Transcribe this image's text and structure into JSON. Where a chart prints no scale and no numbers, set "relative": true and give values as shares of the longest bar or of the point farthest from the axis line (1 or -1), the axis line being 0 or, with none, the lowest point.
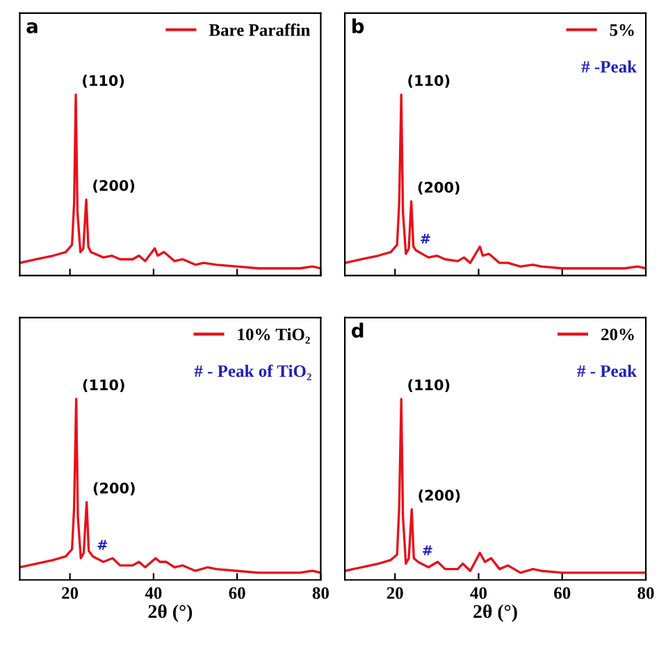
{
  "chart_data": [
    {
      "type": "line",
      "title": "a",
      "relative": true,
      "xlim": [
        8,
        80
      ],
      "xticks": [
        20,
        40,
        60,
        80
      ],
      "tick_labels": false,
      "legend": "top right",
      "marker": "none",
      "line_style": "solid",
      "grid": false,
      "series": [
        {
          "name": "Bare Paraffin",
          "color": "#e8101a",
          "x": [
            8,
            12,
            16,
            19,
            20.5,
            21.0,
            21.4,
            21.8,
            22.5,
            23.2,
            23.9,
            24.4,
            25,
            28,
            30,
            32,
            35,
            36.5,
            38,
            40.3,
            41,
            42.5,
            45,
            47,
            50,
            52,
            55,
            60,
            65,
            70,
            75,
            78,
            80
          ],
          "values": [
            0.07,
            0.09,
            0.11,
            0.13,
            0.17,
            0.4,
            1.0,
            0.35,
            0.13,
            0.15,
            0.42,
            0.16,
            0.13,
            0.1,
            0.11,
            0.09,
            0.09,
            0.11,
            0.08,
            0.15,
            0.11,
            0.13,
            0.08,
            0.09,
            0.06,
            0.07,
            0.06,
            0.05,
            0.04,
            0.04,
            0.04,
            0.05,
            0.04
          ]
        }
      ],
      "annotations": [
        {
          "text": "(110)",
          "x": 21.4,
          "y": 1.0
        },
        {
          "text": "(200)",
          "x": 23.9,
          "y": 0.42
        }
      ]
    },
    {
      "type": "line",
      "title": "b",
      "relative": true,
      "xlim": [
        8,
        80
      ],
      "xticks": [
        20,
        40,
        60,
        80
      ],
      "tick_labels": false,
      "legend": "top right",
      "marker": "none",
      "line_style": "solid",
      "grid": false,
      "series": [
        {
          "name": "5%",
          "color": "#e8101a",
          "x": [
            8,
            12,
            16,
            19,
            20.5,
            21.0,
            21.5,
            21.9,
            22.6,
            23.3,
            23.9,
            24.4,
            25,
            28,
            30,
            32,
            35,
            36.5,
            38,
            40.3,
            41,
            42.5,
            45,
            47,
            50,
            53,
            55,
            60,
            65,
            70,
            75,
            78,
            80
          ],
          "values": [
            0.07,
            0.09,
            0.11,
            0.13,
            0.17,
            0.4,
            1.0,
            0.35,
            0.12,
            0.15,
            0.41,
            0.16,
            0.14,
            0.1,
            0.11,
            0.09,
            0.08,
            0.1,
            0.07,
            0.16,
            0.11,
            0.12,
            0.07,
            0.07,
            0.05,
            0.06,
            0.05,
            0.04,
            0.04,
            0.04,
            0.04,
            0.05,
            0.04
          ]
        }
      ],
      "annotations": [
        {
          "text": "(110)",
          "x": 21.5,
          "y": 1.0
        },
        {
          "text": "(200)",
          "x": 23.9,
          "y": 0.41
        },
        {
          "text": "#",
          "x": 25,
          "y": 0.14
        },
        "# -Peak"
      ]
    },
    {
      "type": "line",
      "title": null,
      "relative": true,
      "xlim": [
        8,
        80
      ],
      "xticks": [
        20,
        40,
        60,
        80
      ],
      "tick_labels": "x",
      "xlabel": "2θ (°)",
      "legend": "top right",
      "marker": "none",
      "line_style": "solid",
      "grid": false,
      "series": [
        {
          "name": "10% TiO₂",
          "color": "#e8101a",
          "x": [
            8,
            12,
            16,
            19,
            20.5,
            21.0,
            21.5,
            21.9,
            22.6,
            23.3,
            24.0,
            24.5,
            25.5,
            28,
            30.2,
            32,
            35,
            36.5,
            38,
            40.5,
            41.5,
            43,
            45,
            47,
            50,
            53,
            55,
            60,
            65,
            70,
            75,
            78,
            80
          ],
          "values": [
            0.07,
            0.09,
            0.11,
            0.13,
            0.17,
            0.4,
            1.0,
            0.35,
            0.12,
            0.15,
            0.43,
            0.16,
            0.13,
            0.1,
            0.12,
            0.08,
            0.08,
            0.1,
            0.07,
            0.12,
            0.1,
            0.1,
            0.07,
            0.08,
            0.05,
            0.07,
            0.06,
            0.05,
            0.04,
            0.04,
            0.04,
            0.05,
            0.04
          ]
        }
      ],
      "annotations": [
        {
          "text": "(110)",
          "x": 21.5,
          "y": 1.0
        },
        {
          "text": "(200)",
          "x": 24.0,
          "y": 0.43
        },
        {
          "text": "#",
          "x": 25.5,
          "y": 0.13
        },
        "# - Peak of TiO₂"
      ]
    },
    {
      "type": "line",
      "title": "d",
      "relative": true,
      "xlim": [
        8,
        80
      ],
      "xticks": [
        20,
        40,
        60,
        80
      ],
      "tick_labels": "x",
      "xlabel": "2θ (°)",
      "legend": "top right",
      "marker": "none",
      "line_style": "solid",
      "grid": false,
      "series": [
        {
          "name": "20%",
          "color": "#e8101a",
          "x": [
            8,
            12,
            16,
            19,
            20.5,
            21.0,
            21.5,
            21.9,
            22.6,
            23.3,
            24.0,
            24.5,
            25.5,
            28,
            30.2,
            32,
            35,
            36.2,
            38,
            40.3,
            41.5,
            43,
            45,
            47,
            50,
            53,
            55,
            60,
            65,
            70,
            75,
            78,
            80
          ],
          "values": [
            0.05,
            0.07,
            0.09,
            0.11,
            0.14,
            0.4,
            1.0,
            0.35,
            0.09,
            0.12,
            0.39,
            0.12,
            0.1,
            0.07,
            0.1,
            0.06,
            0.06,
            0.09,
            0.05,
            0.15,
            0.1,
            0.12,
            0.06,
            0.08,
            0.04,
            0.06,
            0.05,
            0.04,
            0.04,
            0.04,
            0.04,
            0.04,
            0.04
          ]
        }
      ],
      "annotations": [
        {
          "text": "(110)",
          "x": 21.5,
          "y": 1.0
        },
        {
          "text": "(200)",
          "x": 24.0,
          "y": 0.39
        },
        {
          "text": "#",
          "x": 25.5,
          "y": 0.1
        },
        "# - Peak"
      ]
    }
  ]
}
